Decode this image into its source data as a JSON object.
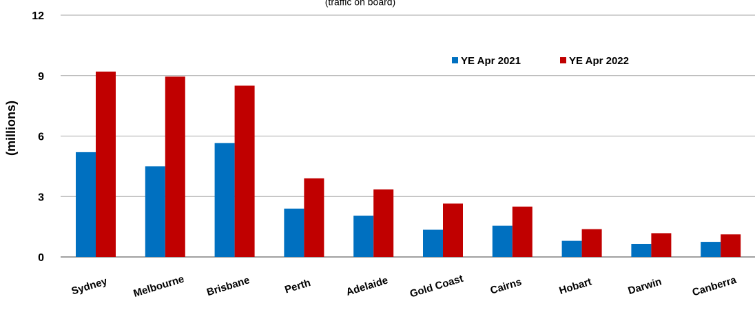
{
  "chart_data": {
    "type": "bar",
    "title": "",
    "subtitle": "(traffic on board)",
    "xlabel": "",
    "ylabel": "(millions)",
    "ylim": [
      0,
      12
    ],
    "yticks": [
      0,
      3,
      6,
      9,
      12
    ],
    "grid": true,
    "legend_position": "top-right",
    "categories": [
      "Sydney",
      "Melbourne",
      "Brisbane",
      "Perth",
      "Adelaide",
      "Gold Coast",
      "Cairns",
      "Hobart",
      "Darwin",
      "Canberra"
    ],
    "series": [
      {
        "name": "YE Apr 2021",
        "color": "#0070C0",
        "values": [
          5.2,
          4.5,
          5.65,
          2.4,
          2.05,
          1.35,
          1.55,
          0.8,
          0.65,
          0.75
        ]
      },
      {
        "name": "YE Apr 2022",
        "color": "#C00000",
        "values": [
          9.2,
          8.95,
          8.5,
          3.9,
          3.35,
          2.65,
          2.5,
          1.38,
          1.18,
          1.12
        ]
      }
    ]
  }
}
